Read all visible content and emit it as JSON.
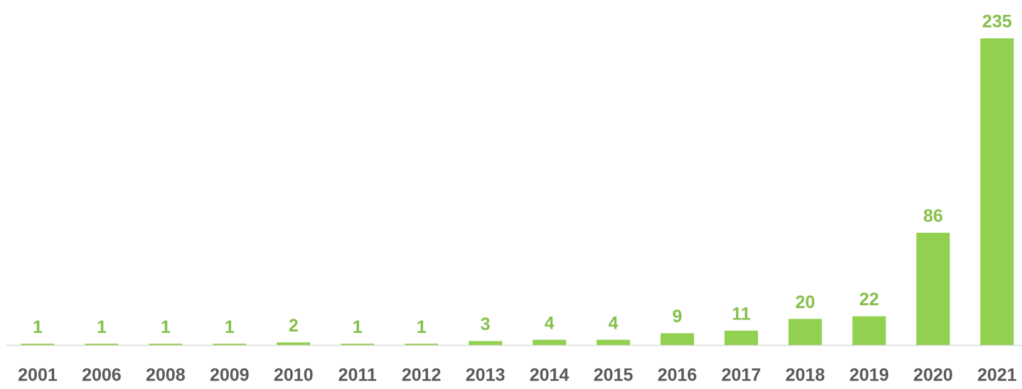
{
  "chart_data": {
    "type": "bar",
    "categories": [
      "2001",
      "2006",
      "2008",
      "2009",
      "2010",
      "2011",
      "2012",
      "2013",
      "2014",
      "2015",
      "2016",
      "2017",
      "2018",
      "2019",
      "2020",
      "2021"
    ],
    "values": [
      1,
      1,
      1,
      1,
      2,
      1,
      1,
      3,
      4,
      4,
      9,
      11,
      20,
      22,
      86,
      235
    ],
    "color": "#92d050",
    "label_color": "#86bf4a",
    "category_color": "#595959"
  }
}
